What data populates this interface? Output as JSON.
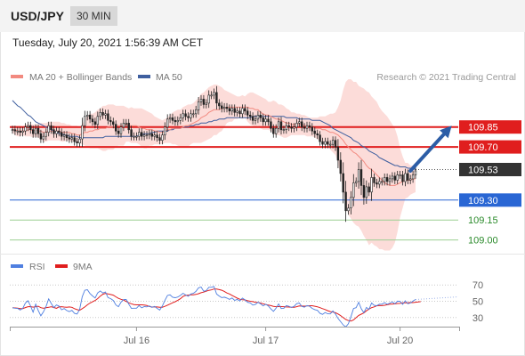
{
  "header": {
    "symbol": "USD/JPY",
    "timeframe": "30 MIN",
    "datetime": "Tuesday, July 20, 2021 1:56:39 AM CET"
  },
  "legend": {
    "ma20": "MA 20 + Bollinger Bands",
    "ma50": "MA 50",
    "credit": "Research © 2021 Trading Central",
    "rsi": "RSI",
    "rsi_ma": "9MA"
  },
  "colors": {
    "ma20": "#f28a80",
    "bands": "#fbd6d2",
    "ma50": "#3f5f9f",
    "resistance": "#e01e1e",
    "pivot": "#2966d4",
    "support": "#9ccf93",
    "support_text": "#2a8a2a",
    "current": "#333333",
    "rsi": "#4f7fe0",
    "rsi_ma": "#e01e1e",
    "arrow": "#2c5da6",
    "up": "#ffffff",
    "down": "#222222"
  },
  "chart_data": {
    "type": "candlestick",
    "symbol": "USD/JPY",
    "interval": "30 MIN",
    "ylim": [
      108.91,
      110.19
    ],
    "levels": [
      {
        "label": "109.85",
        "value": 109.85,
        "role": "resistance"
      },
      {
        "label": "109.70",
        "value": 109.7,
        "role": "resistance"
      },
      {
        "label": "109.53",
        "value": 109.53,
        "role": "current"
      },
      {
        "label": "109.30",
        "value": 109.3,
        "role": "pivot"
      },
      {
        "label": "109.15",
        "value": 109.15,
        "role": "support"
      },
      {
        "label": "109.00",
        "value": 109.0,
        "role": "support"
      }
    ],
    "target_arrow": {
      "from_index": 154,
      "to_index": 170,
      "from_value": 109.52,
      "to_value": 109.86
    },
    "x_ticks": [
      {
        "label": "Jul 16",
        "index": 48
      },
      {
        "label": "Jul 17",
        "index": 98
      },
      {
        "label": "Jul 20",
        "index": 150
      }
    ],
    "closes": [
      109.83,
      109.82,
      109.82,
      109.81,
      109.82,
      109.85,
      109.86,
      109.83,
      109.8,
      109.84,
      109.8,
      109.76,
      109.78,
      109.81,
      109.86,
      109.83,
      109.8,
      109.82,
      109.81,
      109.78,
      109.79,
      109.77,
      109.76,
      109.77,
      109.74,
      109.73,
      109.76,
      109.86,
      109.93,
      109.94,
      109.91,
      109.89,
      109.87,
      109.93,
      109.96,
      109.94,
      109.95,
      109.9,
      109.89,
      109.87,
      109.82,
      109.8,
      109.85,
      109.88,
      109.88,
      109.83,
      109.78,
      109.78,
      109.78,
      109.81,
      109.78,
      109.79,
      109.79,
      109.8,
      109.78,
      109.79,
      109.77,
      109.75,
      109.79,
      109.85,
      109.91,
      109.92,
      109.9,
      109.89,
      109.9,
      109.92,
      109.95,
      109.93,
      109.92,
      109.95,
      109.95,
      109.98,
      110.04,
      110.06,
      110.02,
      110.03,
      110.09,
      110.09,
      110.11,
      110.03,
      110.01,
      109.99,
      110.0,
      109.99,
      109.97,
      109.99,
      109.96,
      109.97,
      109.95,
      109.99,
      109.97,
      109.94,
      109.93,
      109.9,
      109.91,
      109.94,
      109.92,
      109.89,
      109.91,
      109.89,
      109.84,
      109.8,
      109.84,
      109.89,
      109.83,
      109.83,
      109.86,
      109.85,
      109.84,
      109.85,
      109.88,
      109.89,
      109.85,
      109.84,
      109.86,
      109.85,
      109.82,
      109.8,
      109.79,
      109.74,
      109.72,
      109.74,
      109.72,
      109.72,
      109.75,
      109.7,
      109.6,
      109.5,
      109.36,
      109.22,
      109.24,
      109.32,
      109.43,
      109.44,
      109.53,
      109.41,
      109.32,
      109.4,
      109.36,
      109.47,
      109.43,
      109.42,
      109.44,
      109.44,
      109.47,
      109.44,
      109.46,
      109.48,
      109.45,
      109.49,
      109.49,
      109.44,
      109.5,
      109.45,
      109.46,
      109.49,
      109.52
    ],
    "ma20": [
      109.83,
      109.83,
      109.82,
      109.82,
      109.82,
      109.82,
      109.83,
      109.83,
      109.82,
      109.83,
      109.82,
      109.82,
      109.81,
      109.81,
      109.82,
      109.82,
      109.82,
      109.82,
      109.82,
      109.81,
      109.81,
      109.81,
      109.81,
      109.8,
      109.8,
      109.79,
      109.79,
      109.8,
      109.81,
      109.81,
      109.82,
      109.82,
      109.83,
      109.83,
      109.84,
      109.84,
      109.84,
      109.85,
      109.85,
      109.85,
      109.86,
      109.86,
      109.86,
      109.86,
      109.87,
      109.86,
      109.86,
      109.86,
      109.86,
      109.85,
      109.84,
      109.84,
      109.83,
      109.83,
      109.83,
      109.82,
      109.82,
      109.81,
      109.81,
      109.82,
      109.83,
      109.83,
      109.84,
      109.84,
      109.84,
      109.84,
      109.85,
      109.86,
      109.86,
      109.87,
      109.88,
      109.89,
      109.9,
      109.92,
      109.93,
      109.94,
      109.96,
      109.97,
      109.98,
      109.98,
      109.98,
      109.99,
      109.99,
      110.0,
      110.0,
      110.0,
      110.0,
      110.0,
      110.0,
      110.0,
      110.0,
      110.0,
      109.99,
      109.99,
      109.98,
      109.98,
      109.96,
      109.95,
      109.94,
      109.94,
      109.93,
      109.92,
      109.91,
      109.91,
      109.9,
      109.89,
      109.88,
      109.88,
      109.87,
      109.87,
      109.87,
      109.87,
      109.87,
      109.86,
      109.86,
      109.85,
      109.85,
      109.84,
      109.84,
      109.84,
      109.83,
      109.83,
      109.82,
      109.81,
      109.81,
      109.8,
      109.79,
      109.77,
      109.75,
      109.72,
      109.7,
      109.68,
      109.66,
      109.65,
      109.63,
      109.61,
      109.59,
      109.56,
      109.54,
      109.53,
      109.51,
      109.49,
      109.47,
      109.45,
      109.43,
      109.42,
      109.41,
      109.41,
      109.41,
      109.42,
      109.43,
      109.44,
      109.45,
      109.45,
      109.45,
      109.46,
      109.46
    ],
    "bb_upper": [
      109.86,
      109.86,
      109.86,
      109.86,
      109.85,
      109.87,
      109.87,
      109.87,
      109.87,
      109.87,
      109.87,
      109.88,
      109.88,
      109.88,
      109.89,
      109.89,
      109.89,
      109.89,
      109.89,
      109.88,
      109.88,
      109.87,
      109.87,
      109.86,
      109.86,
      109.86,
      109.85,
      109.87,
      109.91,
      109.93,
      109.95,
      109.95,
      109.96,
      109.98,
      109.99,
      110.01,
      110.01,
      110.02,
      110.02,
      110.02,
      110.01,
      110.01,
      110.01,
      110.01,
      110.0,
      109.99,
      110.0,
      109.99,
      109.99,
      109.99,
      109.99,
      109.98,
      109.97,
      109.96,
      109.95,
      109.93,
      109.92,
      109.91,
      109.9,
      109.91,
      109.92,
      109.94,
      109.96,
      109.97,
      109.98,
      109.98,
      110.0,
      110.01,
      110.02,
      110.02,
      110.03,
      110.05,
      110.07,
      110.1,
      110.11,
      110.13,
      110.15,
      110.16,
      110.17,
      110.17,
      110.16,
      110.15,
      110.13,
      110.12,
      110.11,
      110.1,
      110.09,
      110.08,
      110.08,
      110.09,
      110.08,
      110.1,
      110.11,
      110.11,
      110.1,
      110.09,
      110.08,
      110.07,
      110.06,
      110.04,
      110.04,
      110.05,
      110.04,
      110.02,
      110.02,
      110.01,
      109.99,
      109.98,
      109.96,
      109.96,
      109.95,
      109.95,
      109.94,
      109.94,
      109.93,
      109.92,
      109.92,
      109.92,
      109.92,
      109.93,
      109.93,
      109.93,
      109.94,
      109.95,
      109.95,
      109.96,
      110.0,
      110.05,
      110.13,
      110.19,
      110.21,
      110.21,
      110.19,
      110.19,
      110.16,
      110.15,
      110.14,
      110.12,
      110.11,
      110.08,
      110.06,
      110.04,
      110.0,
      109.97,
      109.95,
      109.93,
      109.9,
      109.87,
      109.84,
      109.78,
      109.69,
      109.63,
      109.58,
      109.58,
      109.56,
      109.56,
      109.56
    ],
    "bb_lower": [
      109.81,
      109.79,
      109.78,
      109.78,
      109.79,
      109.78,
      109.78,
      109.78,
      109.77,
      109.78,
      109.77,
      109.76,
      109.74,
      109.74,
      109.75,
      109.75,
      109.75,
      109.75,
      109.75,
      109.74,
      109.74,
      109.75,
      109.74,
      109.74,
      109.74,
      109.73,
      109.73,
      109.72,
      109.71,
      109.7,
      109.69,
      109.69,
      109.69,
      109.69,
      109.68,
      109.67,
      109.67,
      109.68,
      109.68,
      109.68,
      109.7,
      109.71,
      109.71,
      109.71,
      109.74,
      109.74,
      109.73,
      109.73,
      109.73,
      109.72,
      109.7,
      109.69,
      109.69,
      109.71,
      109.71,
      109.72,
      109.72,
      109.72,
      109.72,
      109.73,
      109.73,
      109.73,
      109.72,
      109.72,
      109.71,
      109.7,
      109.7,
      109.7,
      109.7,
      109.72,
      109.73,
      109.73,
      109.73,
      109.73,
      109.74,
      109.75,
      109.76,
      109.77,
      109.79,
      109.79,
      109.81,
      109.82,
      109.85,
      109.88,
      109.89,
      109.89,
      109.91,
      109.91,
      109.92,
      109.91,
      109.92,
      109.89,
      109.87,
      109.86,
      109.85,
      109.86,
      109.84,
      109.83,
      109.83,
      109.83,
      109.82,
      109.8,
      109.79,
      109.79,
      109.78,
      109.77,
      109.77,
      109.78,
      109.79,
      109.79,
      109.79,
      109.79,
      109.79,
      109.79,
      109.78,
      109.78,
      109.78,
      109.77,
      109.76,
      109.74,
      109.73,
      109.72,
      109.71,
      109.68,
      109.66,
      109.64,
      109.58,
      109.48,
      109.37,
      109.26,
      109.19,
      109.16,
      109.13,
      109.11,
      109.1,
      109.07,
      109.03,
      109.0,
      108.96,
      108.98,
      108.96,
      108.95,
      108.93,
      108.93,
      108.92,
      108.92,
      108.92,
      108.94,
      108.98,
      109.06,
      109.17,
      109.24,
      109.31,
      109.32,
      109.34,
      109.35,
      109.36
    ],
    "ma50": [
      110.05,
      110.03,
      110.01,
      110.0,
      109.98,
      109.96,
      109.94,
      109.93,
      109.91,
      109.89,
      109.88,
      109.87,
      109.86,
      109.85,
      109.84,
      109.83,
      109.82,
      109.81,
      109.8,
      109.8,
      109.79,
      109.79,
      109.78,
      109.78,
      109.78,
      109.78,
      109.77,
      109.77,
      109.77,
      109.77,
      109.77,
      109.77,
      109.77,
      109.77,
      109.77,
      109.77,
      109.78,
      109.78,
      109.78,
      109.78,
      109.78,
      109.78,
      109.78,
      109.78,
      109.78,
      109.78,
      109.78,
      109.78,
      109.78,
      109.79,
      109.79,
      109.8,
      109.8,
      109.8,
      109.81,
      109.81,
      109.82,
      109.82,
      109.82,
      109.82,
      109.82,
      109.83,
      109.83,
      109.84,
      109.84,
      109.84,
      109.85,
      109.85,
      109.85,
      109.86,
      109.86,
      109.87,
      109.87,
      109.88,
      109.88,
      109.88,
      109.89,
      109.89,
      109.9,
      109.9,
      109.91,
      109.91,
      109.91,
      109.92,
      109.92,
      109.92,
      109.92,
      109.92,
      109.92,
      109.92,
      109.92,
      109.92,
      109.92,
      109.93,
      109.93,
      109.93,
      109.93,
      109.93,
      109.93,
      109.93,
      109.93,
      109.93,
      109.93,
      109.93,
      109.93,
      109.93,
      109.92,
      109.92,
      109.92,
      109.92,
      109.92,
      109.91,
      109.91,
      109.91,
      109.91,
      109.91,
      109.9,
      109.9,
      109.9,
      109.9,
      109.89,
      109.88,
      109.87,
      109.86,
      109.84,
      109.83,
      109.82,
      109.81,
      109.8,
      109.79,
      109.78,
      109.77,
      109.75,
      109.74,
      109.73,
      109.71,
      109.7,
      109.69,
      109.67,
      109.66,
      109.65,
      109.64,
      109.62,
      109.61,
      109.6,
      109.59,
      109.58,
      109.57,
      109.56,
      109.56,
      109.55,
      109.55,
      109.55,
      109.54,
      109.54,
      109.54,
      109.53
    ],
    "rsi": {
      "ylim": [
        20,
        80
      ],
      "ticks": [
        70,
        50,
        30
      ],
      "rsi": [
        42.0,
        41.5,
        41.3,
        39.3,
        41.4,
        47.8,
        50.7,
        44.3,
        36.6,
        46.5,
        38.7,
        32.2,
        37.0,
        43.8,
        53.0,
        47.3,
        42.3,
        45.4,
        44.1,
        39.5,
        41.2,
        38.6,
        37.4,
        38.9,
        35.2,
        34.4,
        40.1,
        55.6,
        63.5,
        64.2,
        59.5,
        56.5,
        54.0,
        60.2,
        62.7,
        60.1,
        61.3,
        54.5,
        53.3,
        51.0,
        45.5,
        43.3,
        48.9,
        52.1,
        52.2,
        46.5,
        41.4,
        41.5,
        41.5,
        44.8,
        41.9,
        43.5,
        43.1,
        44.2,
        42.5,
        43.7,
        41.3,
        39.2,
        44.1,
        51.0,
        57.1,
        57.9,
        55.0,
        54.4,
        55.2,
        57.2,
        59.8,
        57.8,
        56.0,
        58.9,
        59.7,
        62.1,
        66.5,
        67.5,
        62.3,
        63.1,
        67.1,
        67.1,
        68.1,
        59.0,
        56.4,
        54.5,
        55.0,
        53.9,
        52.3,
        54.0,
        51.1,
        52.3,
        50.3,
        53.8,
        51.8,
        48.7,
        48.0,
        45.3,
        46.1,
        48.7,
        47.0,
        44.3,
        46.3,
        44.3,
        40.6,
        37.7,
        41.5,
        46.7,
        41.2,
        41.4,
        44.7,
        43.8,
        42.5,
        43.8,
        47.1,
        47.9,
        43.7,
        42.8,
        44.7,
        43.9,
        41.3,
        39.7,
        38.9,
        35.2,
        34.0,
        36.3,
        34.6,
        34.5,
        38.2,
        34.4,
        28.9,
        25.0,
        21.0,
        18.6,
        22.4,
        31.1,
        41.2,
        42.1,
        48.8,
        40.8,
        36.0,
        42.5,
        40.0,
        47.9,
        45.0,
        44.5,
        46.4,
        46.4,
        48.4,
        46.3,
        47.7,
        49.3,
        47.0,
        50.1,
        49.9,
        46.2,
        50.5,
        47.0,
        47.8,
        50.2,
        52.2
      ],
      "ma9": [
        42.0,
        41.8,
        41.6,
        41.0,
        41.1,
        42.2,
        43.4,
        43.5,
        42.8,
        43.4,
        43.9,
        42.1,
        41.4,
        42.1,
        42.6,
        43.3,
        42.4,
        41.4,
        43.1,
        43.4,
        42.9,
        42.6,
        43.0,
        42.6,
        40.9,
        39.7,
        39.0,
        40.9,
        43.0,
        45.6,
        47.8,
        49.4,
        51.0,
        53.3,
        56.3,
        58.6,
        59.6,
        59.1,
        58.3,
        57.5,
        55.5,
        53.6,
        52.4,
        51.4,
        49.8,
        48.1,
        46.9,
        46.0,
        45.6,
        45.6,
        45.6,
        45.4,
        44.9,
        43.6,
        42.9,
        43.2,
        43.0,
        42.6,
        42.7,
        43.8,
        45.2,
        46.6,
        48.1,
        49.5,
        51.2,
        53.2,
        55.9,
        57.2,
        57.5,
        57.9,
        58.0,
        58.4,
        59.3,
        60.5,
        61.2,
        62.3,
        63.4,
        64.0,
        65.1,
        64.9,
        64.3,
        63.5,
        62.1,
        60.1,
        58.9,
        57.2,
        55.6,
        53.8,
        52.5,
        52.0,
        51.6,
        50.7,
        50.0,
        49.6,
        48.8,
        48.7,
        47.8,
        46.9,
        46.1,
        45.3,
        44.6,
        43.8,
        43.3,
        43.5,
        43.5,
        43.3,
        43.0,
        42.9,
        42.7,
        42.6,
        43.4,
        44.2,
        44.1,
        44.0,
        44.2,
        44.5,
        44.5,
        43.9,
        43.2,
        42.1,
        41.0,
        39.9,
        38.4,
        37.3,
        36.8,
        35.9,
        34.4,
        32.4,
        29.9,
        27.7,
        26.3,
        25.8,
        27.1,
        29.9,
        32.6,
        34.2,
        35.7,
        38.3,
        40.5,
        42.1,
        43.1,
        44.4,
        44.8,
        44.6,
        45.1,
        45.7,
        46.4,
        46.6,
        46.8,
        47.3,
        47.4,
        48.0,
        48.3,
        48.0,
        48.5,
        48.4,
        48.8,
        49.1,
        49.6
      ]
    }
  }
}
